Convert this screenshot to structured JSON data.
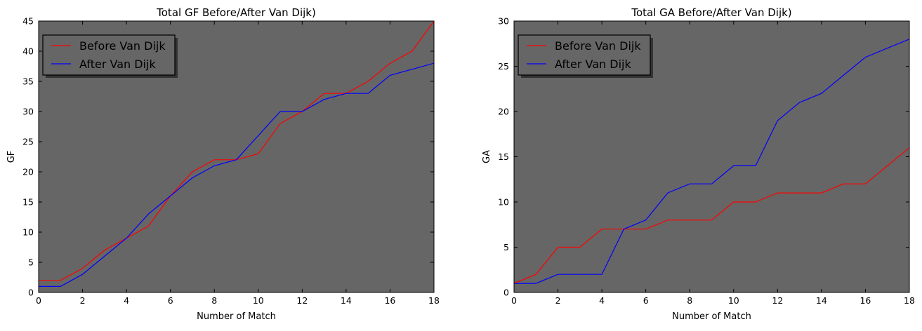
{
  "chart_data": [
    {
      "type": "line",
      "title": "Total GF Before/After Van Dijk)",
      "xlabel": "Number of Match",
      "ylabel": "GF",
      "xlim": [
        0,
        18
      ],
      "ylim": [
        0,
        45
      ],
      "xticks": [
        "0",
        "2",
        "4",
        "6",
        "8",
        "10",
        "12",
        "14",
        "16",
        "18"
      ],
      "yticks": [
        "0",
        "5",
        "10",
        "15",
        "20",
        "25",
        "30",
        "35",
        "40",
        "45"
      ],
      "x": [
        0,
        1,
        2,
        3,
        4,
        5,
        6,
        7,
        8,
        9,
        10,
        11,
        12,
        13,
        14,
        15,
        16,
        17,
        18
      ],
      "series": [
        {
          "name": "Before Van Dijk",
          "color": "#ff0000",
          "values": [
            2,
            2,
            4,
            7,
            9,
            11,
            16,
            20,
            22,
            22,
            23,
            28,
            30,
            33,
            33,
            35,
            38,
            40,
            45
          ]
        },
        {
          "name": "After Van Dijk",
          "color": "#0000ff",
          "values": [
            1,
            1,
            3,
            6,
            9,
            13,
            16,
            19,
            21,
            22,
            26,
            30,
            30,
            32,
            33,
            33,
            36,
            37,
            38
          ]
        }
      ],
      "legend_position": "top-left",
      "plot_background": "#666666"
    },
    {
      "type": "line",
      "title": "Total GA Before/After Van Dijk)",
      "xlabel": "Number of Match",
      "ylabel": "GA",
      "xlim": [
        0,
        18
      ],
      "ylim": [
        0,
        30
      ],
      "xticks": [
        "0",
        "2",
        "4",
        "6",
        "8",
        "10",
        "12",
        "14",
        "16",
        "18"
      ],
      "yticks": [
        "0",
        "5",
        "10",
        "15",
        "20",
        "25",
        "30"
      ],
      "x": [
        0,
        1,
        2,
        3,
        4,
        5,
        6,
        7,
        8,
        9,
        10,
        11,
        12,
        13,
        14,
        15,
        16,
        17,
        18
      ],
      "series": [
        {
          "name": "Before Van Dijk",
          "color": "#ff0000",
          "values": [
            1,
            2,
            5,
            5,
            7,
            7,
            7,
            8,
            8,
            8,
            10,
            10,
            11,
            11,
            11,
            12,
            12,
            14,
            16
          ]
        },
        {
          "name": "After Van Dijk",
          "color": "#0000ff",
          "values": [
            1,
            1,
            2,
            2,
            2,
            7,
            8,
            11,
            12,
            12,
            14,
            14,
            19,
            21,
            22,
            24,
            26,
            27,
            28
          ]
        }
      ],
      "legend_position": "top-left",
      "plot_background": "#666666"
    }
  ]
}
